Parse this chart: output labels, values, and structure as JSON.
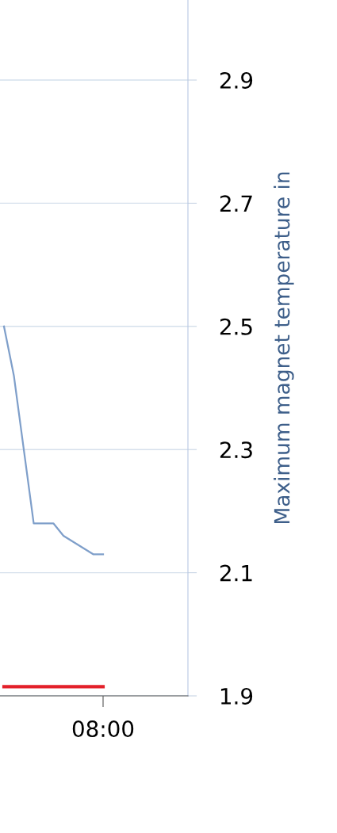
{
  "chart_data": {
    "type": "line",
    "ylabel": "Maximum magnet temperature in",
    "categories": [
      null,
      null,
      null,
      null,
      null,
      null,
      null,
      null,
      null,
      null,
      "08:00",
      null,
      null,
      null,
      null,
      null,
      null,
      null,
      null
    ],
    "series": [
      {
        "color": "#7f9fca",
        "values": [
          2.5,
          2.42,
          2.3,
          2.18,
          2.18,
          2.18,
          2.16,
          2.15,
          2.14,
          2.13,
          2.13,
          null,
          null,
          null,
          null,
          null,
          null,
          null,
          null
        ]
      },
      {
        "color": "#e3202a",
        "values": [
          1.915,
          1.915,
          1.915,
          1.915,
          1.915,
          1.915,
          1.915,
          1.915,
          1.915,
          1.915,
          1.915,
          null,
          null,
          null,
          null,
          null,
          null,
          null,
          null
        ]
      }
    ],
    "ylim": [
      1.9,
      3.03
    ],
    "yticks": [
      1.9,
      2.1,
      2.3,
      2.5,
      2.7,
      2.9
    ],
    "grid": "y",
    "line_style": "solid"
  }
}
